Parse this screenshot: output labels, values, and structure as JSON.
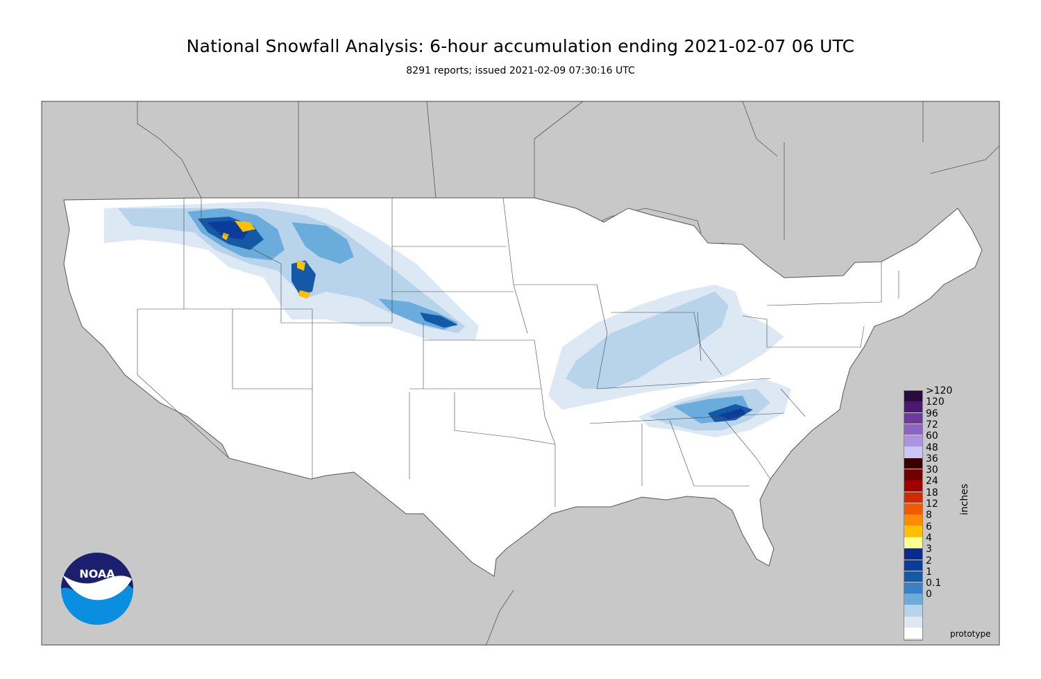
{
  "title": "National Snowfall Analysis: 6-hour accumulation ending 2021-02-07 06 UTC",
  "subtitle": "8291 reports; issued 2021-02-09 07:30:16 UTC",
  "legend": {
    "units": "inches",
    "entries": [
      {
        "label": ">120",
        "color": "#2a0b3d"
      },
      {
        "label": "120",
        "color": "#4b1a6e"
      },
      {
        "label": "96",
        "color": "#6b3a9a"
      },
      {
        "label": "72",
        "color": "#8f63c4"
      },
      {
        "label": "60",
        "color": "#a996de"
      },
      {
        "label": "48",
        "color": "#ccc6f5"
      },
      {
        "label": "36",
        "color": "#3a0000"
      },
      {
        "label": "30",
        "color": "#6e0000"
      },
      {
        "label": "24",
        "color": "#a00000"
      },
      {
        "label": "18",
        "color": "#d42800"
      },
      {
        "label": "12",
        "color": "#f05a00"
      },
      {
        "label": "8",
        "color": "#ff8c00"
      },
      {
        "label": "6",
        "color": "#ffc000"
      },
      {
        "label": "4",
        "color": "#ffff90"
      },
      {
        "label": "3",
        "color": "#0a2a8c"
      },
      {
        "label": "2",
        "color": "#0a3c9c"
      },
      {
        "label": "1",
        "color": "#1458a8"
      },
      {
        "label": "0.1",
        "color": "#3a80c8"
      },
      {
        "label": "0",
        "color": "#6aacdc"
      }
    ],
    "extra_colors": [
      "#b8d4ea",
      "#dce8f4",
      "#ffffff"
    ]
  },
  "logo": {
    "text": "NOAA"
  },
  "footer": {
    "note": "prototype"
  },
  "colors": {
    "background": "#c8c8c8",
    "land": "#ffffff",
    "border": "#333333"
  }
}
